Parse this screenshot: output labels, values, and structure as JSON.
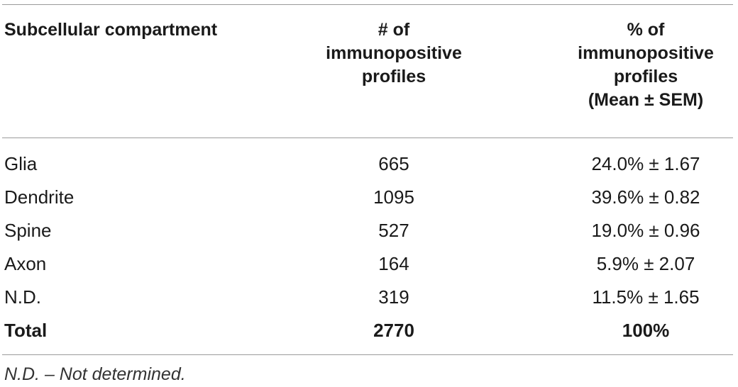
{
  "table": {
    "headers": {
      "col1": [
        "Subcellular compartment"
      ],
      "col2": [
        "# of",
        "immunopositive",
        "profiles"
      ],
      "col3": [
        "% of",
        "immunopositive",
        "profiles",
        "(Mean ± SEM)"
      ]
    },
    "rows": [
      {
        "compartment": "Glia",
        "count": "665",
        "percent": "24.0% ± 1.67"
      },
      {
        "compartment": "Dendrite",
        "count": "1095",
        "percent": "39.6% ± 0.82"
      },
      {
        "compartment": "Spine",
        "count": "527",
        "percent": "19.0% ± 0.96"
      },
      {
        "compartment": "Axon",
        "count": "164",
        "percent": "5.9% ± 2.07"
      },
      {
        "compartment": "N.D.",
        "count": "319",
        "percent": "11.5% ± 1.65"
      }
    ],
    "total": {
      "compartment": "Total",
      "count": "2770",
      "percent": "100%"
    }
  },
  "footnote": "N.D. – Not determined."
}
